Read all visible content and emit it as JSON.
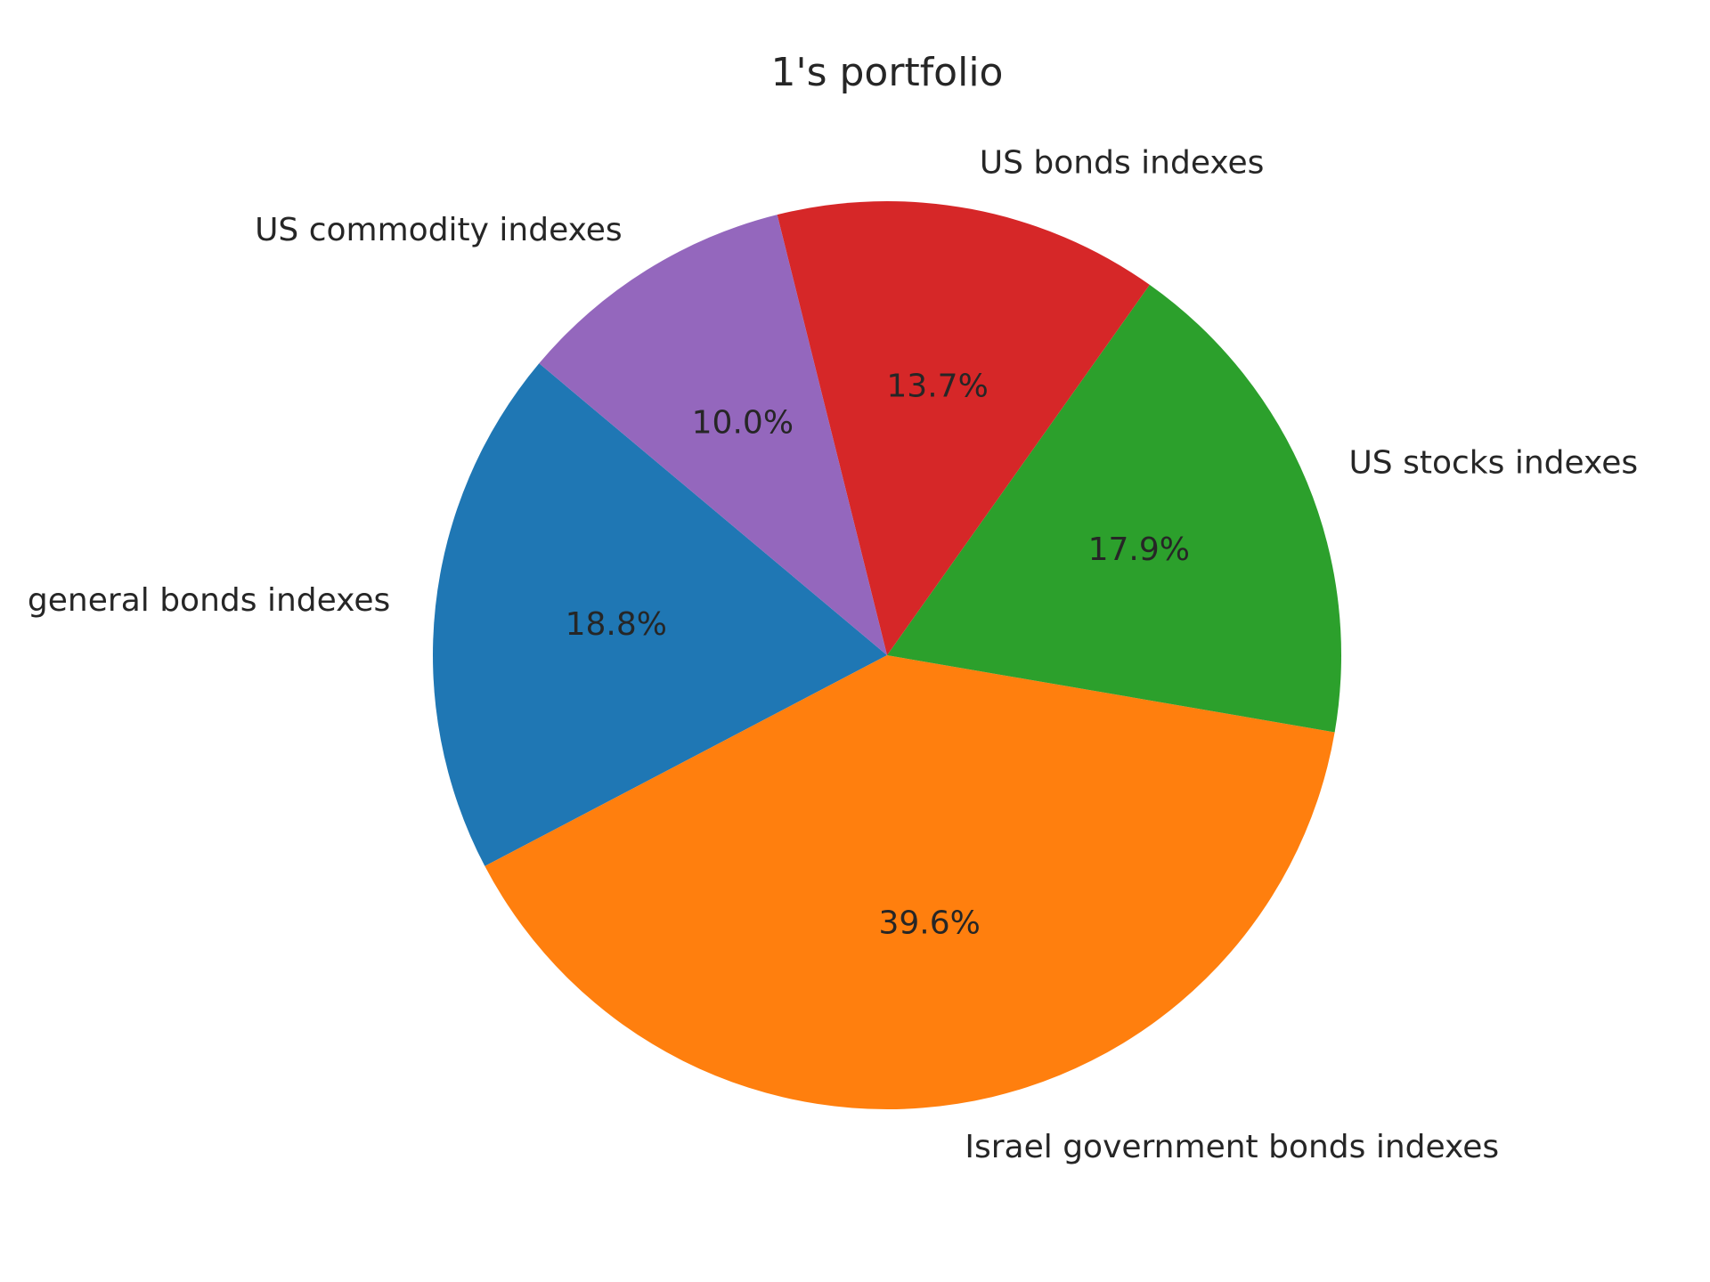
{
  "chart_data": {
    "type": "pie",
    "title": "1's portfolio",
    "start_angle_deg": 140,
    "direction": "counterclockwise",
    "slices": [
      {
        "label": "general bonds indexes",
        "value": 18.8,
        "pct_label": "18.8%",
        "color": "#1f77b4"
      },
      {
        "label": "Israel government bonds indexes",
        "value": 39.6,
        "pct_label": "39.6%",
        "color": "#ff7f0e"
      },
      {
        "label": "US stocks indexes",
        "value": 17.9,
        "pct_label": "17.9%",
        "color": "#2ca02c"
      },
      {
        "label": "US bonds indexes",
        "value": 13.7,
        "pct_label": "13.7%",
        "color": "#d62728"
      },
      {
        "label": "US commodity indexes",
        "value": 10.0,
        "pct_label": "10.0%",
        "color": "#9467bd"
      }
    ]
  }
}
